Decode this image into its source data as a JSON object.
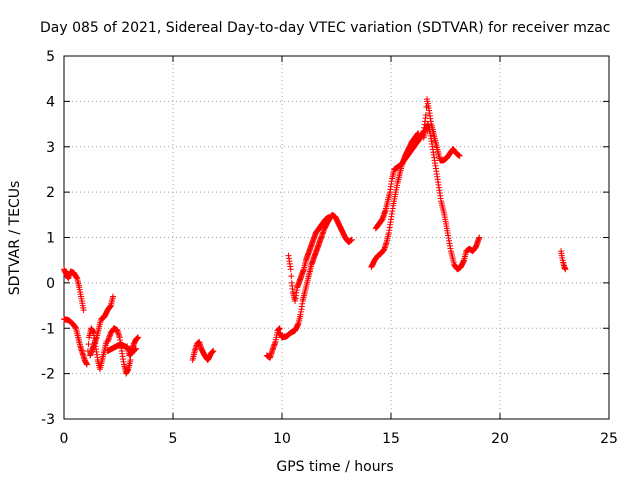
{
  "chart_data": {
    "type": "scatter",
    "title": "Day 085 of 2021, Sidereal Day-to-day VTEC variation (SDTVAR) for receiver mzac",
    "xlabel": "GPS time / hours",
    "ylabel": "SDTVAR / TECUs",
    "xlim": [
      0,
      25
    ],
    "ylim": [
      -3,
      5
    ],
    "xticks": [
      "0",
      "5",
      "10",
      "15",
      "20",
      "25"
    ],
    "yticks": [
      "-3",
      "-2",
      "-1",
      "0",
      "1",
      "2",
      "3",
      "4",
      "5"
    ],
    "grid": true,
    "marker": "+",
    "marker_color": "#ff0000",
    "series": [
      {
        "segments": [
          [
            [
              0.0,
              0.3
            ],
            [
              0.1,
              0.2
            ],
            [
              0.2,
              0.1
            ],
            [
              0.3,
              0.25
            ],
            [
              0.45,
              0.22
            ],
            [
              0.6,
              0.1
            ],
            [
              0.7,
              -0.1
            ],
            [
              0.8,
              -0.35
            ],
            [
              0.9,
              -0.6
            ]
          ],
          [
            [
              0.0,
              -0.8
            ],
            [
              0.2,
              -0.82
            ],
            [
              0.4,
              -0.9
            ],
            [
              0.55,
              -1.0
            ],
            [
              0.65,
              -1.2
            ],
            [
              0.75,
              -1.4
            ],
            [
              0.85,
              -1.55
            ],
            [
              0.95,
              -1.7
            ],
            [
              1.05,
              -1.8
            ]
          ],
          [
            [
              1.1,
              -1.5
            ],
            [
              1.15,
              -1.2
            ],
            [
              1.25,
              -1.0
            ],
            [
              1.35,
              -1.1
            ],
            [
              1.45,
              -1.4
            ],
            [
              1.55,
              -1.7
            ],
            [
              1.65,
              -1.9
            ],
            [
              1.75,
              -1.7
            ],
            [
              1.85,
              -1.5
            ],
            [
              1.95,
              -1.3
            ]
          ],
          [
            [
              1.2,
              -1.6
            ],
            [
              1.35,
              -1.4
            ],
            [
              1.5,
              -1.2
            ],
            [
              1.6,
              -1.0
            ],
            [
              1.7,
              -0.8
            ],
            [
              1.85,
              -0.75
            ],
            [
              2.0,
              -0.6
            ],
            [
              2.15,
              -0.5
            ],
            [
              2.25,
              -0.3
            ]
          ],
          [
            [
              2.0,
              -1.3
            ],
            [
              2.15,
              -1.1
            ],
            [
              2.3,
              -1.0
            ],
            [
              2.45,
              -1.05
            ],
            [
              2.55,
              -1.2
            ],
            [
              2.65,
              -1.5
            ],
            [
              2.75,
              -1.8
            ],
            [
              2.85,
              -2.0
            ],
            [
              2.95,
              -1.9
            ],
            [
              3.05,
              -1.7
            ]
          ],
          [
            [
              2.0,
              -1.5
            ],
            [
              2.2,
              -1.45
            ],
            [
              2.4,
              -1.4
            ],
            [
              2.6,
              -1.35
            ],
            [
              2.8,
              -1.4
            ],
            [
              2.95,
              -1.45
            ],
            [
              3.1,
              -1.5
            ],
            [
              3.2,
              -1.35
            ],
            [
              3.3,
              -1.25
            ],
            [
              3.4,
              -1.2
            ]
          ],
          [
            [
              2.9,
              -1.4
            ],
            [
              3.0,
              -1.6
            ],
            [
              3.1,
              -1.55
            ],
            [
              3.2,
              -1.5
            ],
            [
              3.3,
              -1.45
            ]
          ],
          [
            [
              5.9,
              -1.7
            ],
            [
              6.0,
              -1.5
            ],
            [
              6.1,
              -1.35
            ],
            [
              6.2,
              -1.3
            ],
            [
              6.3,
              -1.45
            ],
            [
              6.45,
              -1.6
            ],
            [
              6.6,
              -1.7
            ],
            [
              6.75,
              -1.55
            ],
            [
              6.85,
              -1.5
            ]
          ],
          [
            [
              9.3,
              -1.6
            ],
            [
              9.45,
              -1.65
            ],
            [
              9.55,
              -1.5
            ],
            [
              9.7,
              -1.3
            ],
            [
              9.8,
              -1.05
            ],
            [
              9.9,
              -1.0
            ]
          ],
          [
            [
              9.9,
              -1.1
            ],
            [
              10.0,
              -1.2
            ],
            [
              10.2,
              -1.18
            ],
            [
              10.4,
              -1.1
            ],
            [
              10.6,
              -1.05
            ],
            [
              10.75,
              -0.9
            ],
            [
              10.85,
              -0.7
            ],
            [
              10.95,
              -0.4
            ],
            [
              11.05,
              -0.2
            ],
            [
              11.2,
              0.1
            ],
            [
              11.35,
              0.4
            ],
            [
              11.5,
              0.6
            ],
            [
              11.65,
              0.8
            ],
            [
              11.8,
              1.0
            ],
            [
              11.95,
              1.2
            ],
            [
              12.1,
              1.35
            ],
            [
              12.3,
              1.5
            ],
            [
              12.45,
              1.45
            ],
            [
              12.6,
              1.3
            ],
            [
              12.75,
              1.15
            ],
            [
              12.9,
              1.0
            ],
            [
              13.05,
              0.9
            ],
            [
              13.2,
              0.95
            ]
          ],
          [
            [
              10.3,
              0.6
            ],
            [
              10.4,
              0.3
            ],
            [
              10.45,
              0.0
            ],
            [
              10.5,
              -0.2
            ],
            [
              10.6,
              -0.4
            ],
            [
              10.7,
              -0.1
            ],
            [
              10.85,
              0.1
            ],
            [
              11.0,
              0.3
            ],
            [
              11.1,
              0.5
            ],
            [
              11.25,
              0.7
            ],
            [
              11.4,
              0.9
            ],
            [
              11.55,
              1.1
            ],
            [
              11.7,
              1.2
            ],
            [
              11.85,
              1.3
            ],
            [
              12.0,
              1.4
            ],
            [
              12.15,
              1.45
            ]
          ],
          [
            [
              14.1,
              0.35
            ],
            [
              14.25,
              0.5
            ],
            [
              14.4,
              0.6
            ],
            [
              14.55,
              0.65
            ],
            [
              14.7,
              0.75
            ],
            [
              14.8,
              0.9
            ],
            [
              14.9,
              1.1
            ],
            [
              15.0,
              1.4
            ],
            [
              15.1,
              1.7
            ],
            [
              15.2,
              1.95
            ],
            [
              15.3,
              2.2
            ],
            [
              15.4,
              2.4
            ],
            [
              15.5,
              2.6
            ],
            [
              15.65,
              2.8
            ],
            [
              15.8,
              2.95
            ],
            [
              15.95,
              3.1
            ],
            [
              16.1,
              3.2
            ],
            [
              16.25,
              3.3
            ]
          ],
          [
            [
              14.3,
              1.2
            ],
            [
              14.45,
              1.3
            ],
            [
              14.6,
              1.4
            ],
            [
              14.75,
              1.6
            ],
            [
              14.85,
              1.8
            ],
            [
              14.95,
              2.0
            ],
            [
              15.05,
              2.3
            ],
            [
              15.15,
              2.5
            ],
            [
              15.3,
              2.55
            ],
            [
              15.45,
              2.6
            ],
            [
              15.6,
              2.7
            ],
            [
              15.75,
              2.8
            ],
            [
              15.9,
              2.9
            ],
            [
              16.05,
              3.0
            ],
            [
              16.2,
              3.1
            ],
            [
              16.35,
              3.2
            ],
            [
              16.5,
              3.35
            ],
            [
              16.6,
              3.7
            ],
            [
              16.65,
              4.05
            ],
            [
              16.75,
              3.8
            ],
            [
              16.85,
              3.5
            ],
            [
              16.95,
              3.3
            ],
            [
              17.05,
              3.1
            ],
            [
              17.15,
              2.9
            ],
            [
              17.25,
              2.7
            ],
            [
              17.4,
              2.7
            ],
            [
              17.55,
              2.75
            ],
            [
              17.7,
              2.85
            ],
            [
              17.85,
              2.95
            ],
            [
              18.0,
              2.85
            ],
            [
              18.15,
              2.8
            ]
          ],
          [
            [
              16.5,
              3.2
            ],
            [
              16.6,
              3.4
            ],
            [
              16.7,
              3.5
            ],
            [
              16.8,
              3.3
            ],
            [
              16.9,
              3.0
            ],
            [
              17.0,
              2.7
            ],
            [
              17.1,
              2.4
            ],
            [
              17.2,
              2.1
            ],
            [
              17.3,
              1.8
            ],
            [
              17.45,
              1.5
            ],
            [
              17.6,
              1.1
            ],
            [
              17.75,
              0.7
            ],
            [
              17.9,
              0.4
            ],
            [
              18.05,
              0.3
            ],
            [
              18.2,
              0.35
            ],
            [
              18.35,
              0.5
            ],
            [
              18.45,
              0.7
            ],
            [
              18.6,
              0.75
            ],
            [
              18.75,
              0.7
            ],
            [
              18.9,
              0.8
            ],
            [
              19.05,
              1.0
            ]
          ],
          [
            [
              22.8,
              0.7
            ],
            [
              22.85,
              0.55
            ],
            [
              22.9,
              0.45
            ],
            [
              22.95,
              0.35
            ],
            [
              23.0,
              0.3
            ]
          ]
        ]
      }
    ]
  }
}
